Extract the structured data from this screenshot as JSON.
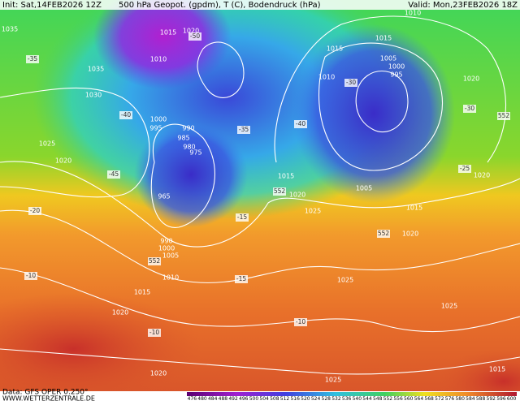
{
  "header": {
    "init": "Init: Sat,14FEB2026 12Z",
    "title": "500 hPa Geopot. (gpdm), T (C), Bodendruck (hPa)",
    "valid": "Valid: Mon,23FEB2026 18Z"
  },
  "footer": {
    "source": "Data: GFS OPER 0.250°",
    "website": "WWW.WETTERZENTRALE.DE"
  },
  "pressure_labels": [
    "1035",
    "1015",
    "1020",
    "1010",
    "1035",
    "1030",
    "1025",
    "1020",
    "1000",
    "995",
    "990",
    "985",
    "980",
    "975",
    "965",
    "1015",
    "1020",
    "1025",
    "1005",
    "1010",
    "1015",
    "1015",
    "1005",
    "1000",
    "995",
    "1020",
    "1020",
    "1015",
    "1020",
    "1025",
    "1025",
    "1020",
    "1015",
    "1010",
    "1005",
    "1000",
    "990",
    "1020",
    "1025",
    "1015",
    "1010"
  ],
  "temperature_labels": [
    "-35",
    "-50",
    "-40",
    "-45",
    "-20",
    "-10",
    "-35",
    "-15",
    "-15",
    "-40",
    "-30",
    "-30",
    "-25",
    "-10",
    "-10"
  ],
  "height_labels": [
    "552",
    "552",
    "552",
    "552"
  ],
  "colorbar": {
    "labels": [
      476,
      480,
      484,
      488,
      492,
      496,
      500,
      504,
      508,
      512,
      516,
      520,
      524,
      528,
      532,
      536,
      540,
      544,
      548,
      552,
      556,
      560,
      564,
      568,
      572,
      576,
      580,
      584,
      588,
      592,
      596,
      600
    ]
  }
}
